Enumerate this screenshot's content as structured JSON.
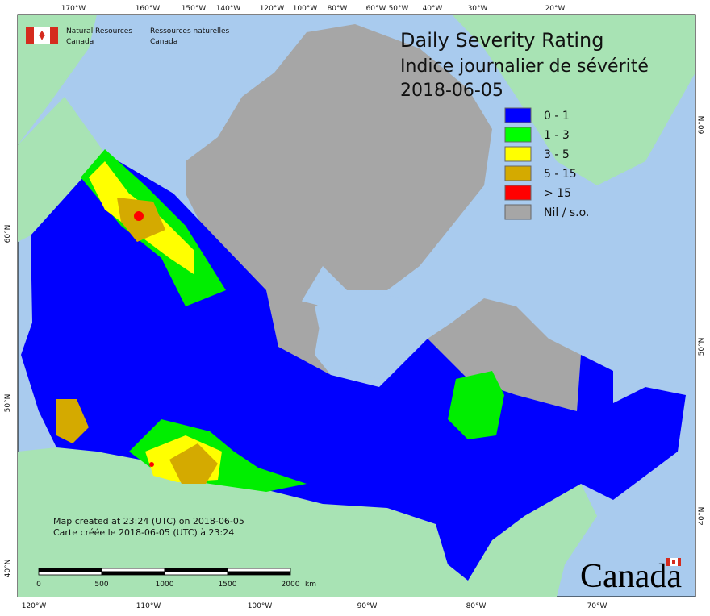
{
  "header": {
    "org_en_1": "Natural Resources",
    "org_en_2": "Canada",
    "org_fr_1": "Ressources naturelles",
    "org_fr_2": "Canada"
  },
  "title": {
    "line1": "Daily Severity Rating",
    "line2": "Indice journalier de sévérité",
    "date": "2018-06-05"
  },
  "legend": [
    {
      "label": "0 - 1",
      "color": "#0000ff"
    },
    {
      "label": "1 - 3",
      "color": "#00ff00"
    },
    {
      "label": "3 - 5",
      "color": "#ffff00"
    },
    {
      "label": "5 - 15",
      "color": "#d4aa00"
    },
    {
      "label": "> 15",
      "color": "#ff0000"
    },
    {
      "label": "Nil / s.o.",
      "color": "#a6a6a6"
    }
  ],
  "top_lon_labels": [
    "170°W",
    "160°W",
    "150°W",
    "140°W",
    "120°W",
    "100°W",
    "80°W",
    "60°W",
    "50°W",
    "40°W",
    "30°W",
    "20°W"
  ],
  "bottom_lon_labels": [
    "120°W",
    "110°W",
    "100°W",
    "90°W",
    "80°W",
    "70°W"
  ],
  "left_lat_labels": [
    "60°N",
    "50°N",
    "40°N"
  ],
  "right_lat_labels": [
    "60°N",
    "50°N",
    "40°N"
  ],
  "credits": {
    "line1": "Map created at 23:24 (UTC) on 2018-06-05",
    "line2": "Carte créée le 2018-06-05 (UTC) à 23:24"
  },
  "scale": {
    "labels": [
      "0",
      "500",
      "1000",
      "1500",
      "2000"
    ],
    "unit": "km"
  },
  "wordmark": "Canada"
}
